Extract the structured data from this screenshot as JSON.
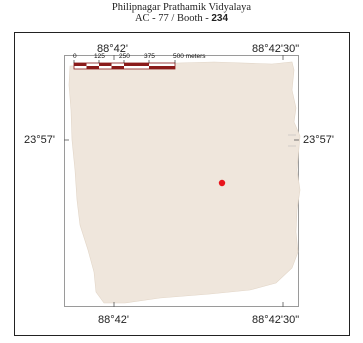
{
  "title": {
    "line1": "Philipnagar Prathamik Vidyalaya",
    "line2_prefix": "AC - 77 / Booth - ",
    "booth_number": "234"
  },
  "grid_labels": {
    "top_left": "88°42'",
    "top_right": "88°42'30\"",
    "bottom_left": "88°42'",
    "bottom_right": "88°42'30\"",
    "left_middle": "23°57'",
    "right_middle": "23°57'"
  },
  "scale_bar": {
    "ticks": [
      "0",
      "125",
      "250",
      "375",
      "500 meters"
    ]
  },
  "colors": {
    "area_fill": "#efe6dc",
    "marker": "#e8141c",
    "scale_dark": "#8b1a1a",
    "scale_light": "#ffffff"
  },
  "marker": {
    "name": "polling-station-marker"
  }
}
